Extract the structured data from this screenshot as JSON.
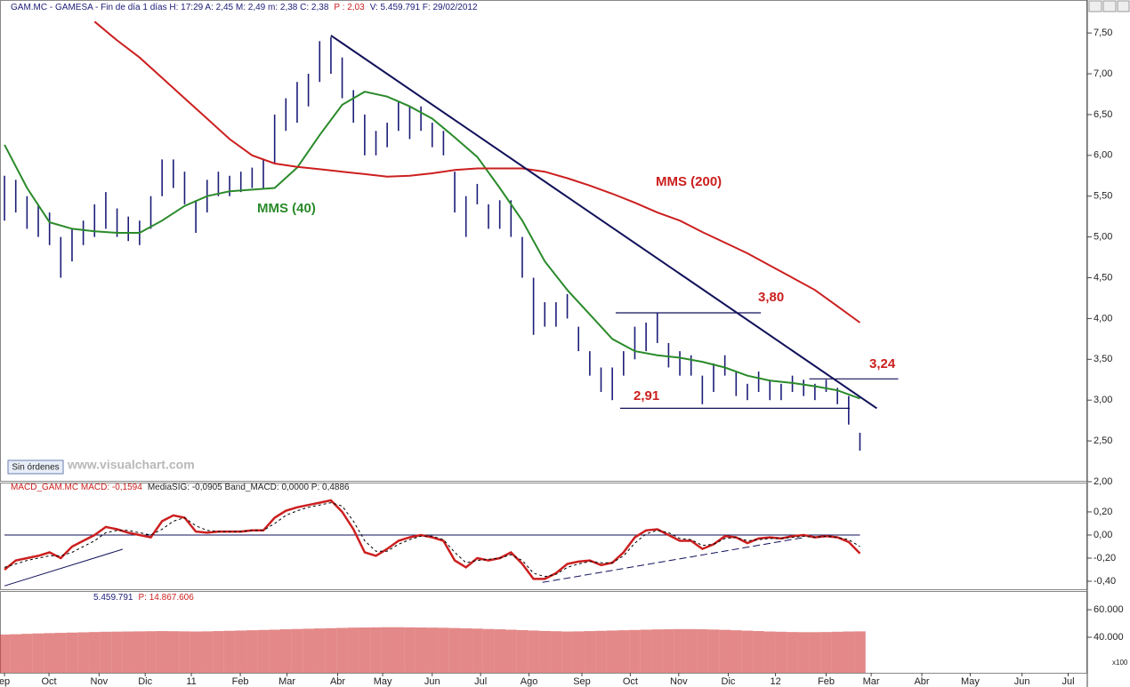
{
  "chart_data": [
    {
      "type": "ohlc",
      "title": "GAM.MC - GAMESA - Fin de día 1 días  H: 17:29  A: 2,45  M: 2,49  m: 2,38  C: 2,38",
      "title_highlight": "P : 2,03",
      "title_tail": "V: 5.459.791  F: 29/02/2012",
      "xlim": [
        -0.4,
        96.2
      ],
      "ylim": [
        2.0,
        7.73
      ],
      "yticks": [
        {
          "value": 2.0,
          "label": "2,00"
        },
        {
          "value": 2.5,
          "label": "2,50"
        },
        {
          "value": 3.0,
          "label": "3,00"
        },
        {
          "value": 3.5,
          "label": "3,50"
        },
        {
          "value": 4.0,
          "label": "4,00"
        },
        {
          "value": 4.5,
          "label": "4,50"
        },
        {
          "value": 5.0,
          "label": "5,00"
        },
        {
          "value": 5.5,
          "label": "5,50"
        },
        {
          "value": 6.0,
          "label": "6,00"
        },
        {
          "value": 6.5,
          "label": "6,50"
        },
        {
          "value": 7.0,
          "label": "7,00"
        },
        {
          "value": 7.5,
          "label": "7,50"
        }
      ],
      "bars": {
        "color": "#1c1c78",
        "x": [
          0,
          1,
          2,
          3,
          4,
          5,
          6,
          7,
          8,
          9,
          10,
          11,
          12,
          13,
          14,
          15,
          16,
          17,
          18,
          19,
          20,
          21,
          22,
          23,
          24,
          25,
          26,
          27,
          28,
          29,
          30,
          31,
          32,
          33,
          34,
          35,
          36,
          37,
          38,
          39,
          40,
          41,
          42,
          43,
          44,
          45,
          46,
          47,
          48,
          49,
          50,
          51,
          52,
          53,
          54,
          55,
          56,
          57,
          58,
          59,
          60,
          61,
          62,
          63,
          64,
          65,
          66,
          67,
          68,
          69,
          70,
          71,
          72,
          73,
          74,
          75,
          76
        ],
        "high": [
          5.75,
          5.7,
          5.5,
          5.4,
          5.3,
          5.0,
          5.1,
          5.2,
          5.4,
          5.55,
          5.35,
          5.25,
          5.2,
          5.5,
          5.95,
          5.95,
          5.8,
          5.45,
          5.7,
          5.8,
          5.75,
          5.8,
          5.85,
          5.95,
          6.5,
          6.7,
          6.9,
          7.0,
          7.4,
          7.45,
          7.2,
          6.8,
          6.5,
          6.3,
          6.4,
          6.65,
          6.6,
          6.6,
          6.4,
          6.3,
          5.8,
          5.5,
          5.65,
          5.4,
          5.45,
          5.45,
          5.0,
          4.5,
          4.2,
          4.2,
          4.3,
          3.9,
          3.6,
          3.4,
          3.4,
          3.6,
          3.9,
          3.95,
          4.07,
          3.7,
          3.6,
          3.55,
          3.3,
          3.45,
          3.55,
          3.35,
          3.2,
          3.35,
          3.25,
          3.2,
          3.3,
          3.25,
          3.2,
          3.25,
          3.15,
          3.05,
          2.6
        ],
        "low": [
          5.2,
          5.3,
          5.1,
          5.0,
          4.9,
          4.5,
          4.7,
          4.9,
          5.0,
          5.1,
          5.0,
          4.95,
          4.9,
          5.1,
          5.5,
          5.6,
          5.4,
          5.05,
          5.3,
          5.5,
          5.5,
          5.55,
          5.6,
          5.6,
          5.9,
          6.3,
          6.4,
          6.6,
          6.9,
          7.0,
          6.7,
          6.4,
          6.0,
          6.0,
          6.1,
          6.3,
          6.2,
          6.3,
          6.1,
          6.0,
          5.3,
          5.0,
          5.4,
          5.1,
          5.1,
          5.0,
          4.5,
          3.8,
          3.9,
          3.9,
          4.0,
          3.6,
          3.3,
          3.1,
          3.0,
          3.3,
          3.5,
          3.6,
          3.7,
          3.4,
          3.3,
          3.3,
          2.95,
          3.1,
          3.3,
          3.05,
          3.0,
          3.1,
          3.0,
          3.0,
          3.1,
          3.05,
          3.0,
          3.1,
          2.95,
          2.7,
          2.38
        ]
      },
      "series": [
        {
          "name": "MMS (40)",
          "color": "#2a8a2a",
          "x": [
            0,
            2,
            4,
            6,
            8,
            10,
            12,
            14,
            16,
            18,
            20,
            22,
            24,
            26,
            28,
            30,
            32,
            34,
            36,
            38,
            40,
            42,
            44,
            46,
            48,
            50,
            52,
            54,
            56,
            58,
            60,
            62,
            64,
            66,
            68,
            70,
            72,
            74,
            76
          ],
          "values": [
            6.13,
            5.6,
            5.18,
            5.1,
            5.07,
            5.05,
            5.05,
            5.2,
            5.38,
            5.5,
            5.56,
            5.58,
            5.6,
            5.85,
            6.25,
            6.62,
            6.78,
            6.72,
            6.6,
            6.45,
            6.22,
            5.98,
            5.6,
            5.2,
            4.7,
            4.35,
            4.05,
            3.75,
            3.6,
            3.55,
            3.52,
            3.47,
            3.4,
            3.3,
            3.24,
            3.21,
            3.17,
            3.12,
            3.02
          ]
        },
        {
          "name": "MMS (200)",
          "color": "#cc1f1f",
          "x": [
            8,
            10,
            12,
            14,
            16,
            18,
            20,
            22,
            24,
            26,
            28,
            30,
            32,
            34,
            36,
            38,
            40,
            42,
            44,
            46,
            48,
            50,
            52,
            54,
            56,
            58,
            60,
            62,
            64,
            66,
            68,
            70,
            72,
            74,
            76
          ],
          "values": [
            7.64,
            7.41,
            7.2,
            6.95,
            6.7,
            6.45,
            6.2,
            6.0,
            5.9,
            5.86,
            5.83,
            5.8,
            5.77,
            5.74,
            5.75,
            5.78,
            5.82,
            5.84,
            5.84,
            5.84,
            5.8,
            5.72,
            5.63,
            5.53,
            5.42,
            5.3,
            5.2,
            5.06,
            4.93,
            4.8,
            4.65,
            4.5,
            4.35,
            4.15,
            3.95
          ]
        }
      ],
      "trendlines": [
        {
          "color": "#10105a",
          "x": [
            29,
            77.5
          ],
          "y": [
            7.47,
            2.9
          ]
        }
      ],
      "annotations": [
        {
          "label": "3,80",
          "y": 4.07,
          "x": [
            54.3,
            67.2
          ]
        },
        {
          "label": "2,91",
          "y": 2.9,
          "x": [
            54.7,
            75.1
          ]
        },
        {
          "label": "3,24",
          "y": 3.26,
          "x": [
            71.5,
            79.4
          ]
        }
      ],
      "annotation_color": "#10105a",
      "watermark": "www.visualchart.com",
      "button": "Sin órdenes"
    },
    {
      "type": "line",
      "title": "MACD_GAM.MC  MACD: -0,1594",
      "title_tail": "MediaSIG: -0,0905  Band_MACD: 0,0000  P: 0,4886",
      "xlim": [
        -0.4,
        96.2
      ],
      "ylim": [
        -0.469,
        0.438
      ],
      "yticks": [
        {
          "value": -0.4,
          "label": "-0,40"
        },
        {
          "value": -0.2,
          "label": "-0,20"
        },
        {
          "value": 0,
          "label": "0,00"
        },
        {
          "value": 0.2,
          "label": "0,20"
        }
      ],
      "reference_line": 0,
      "reference_color": "#10105a",
      "series": [
        {
          "name": "MACD",
          "color": "#cc1f1f",
          "width": 2.5,
          "x": [
            0,
            1,
            2,
            3,
            4,
            5,
            6,
            7,
            8,
            9,
            10,
            11,
            12,
            13,
            14,
            15,
            16,
            17,
            18,
            19,
            20,
            21,
            22,
            23,
            24,
            25,
            26,
            27,
            28,
            29,
            30,
            31,
            32,
            33,
            34,
            35,
            36,
            37,
            38,
            39,
            40,
            41,
            42,
            43,
            44,
            45,
            46,
            47,
            48,
            49,
            50,
            51,
            52,
            53,
            54,
            55,
            56,
            57,
            58,
            59,
            60,
            61,
            62,
            63,
            64,
            65,
            66,
            67,
            68,
            69,
            70,
            71,
            72,
            73,
            74,
            75,
            76
          ],
          "values": [
            -0.3,
            -0.22,
            -0.2,
            -0.18,
            -0.15,
            -0.2,
            -0.1,
            -0.05,
            0.0,
            0.07,
            0.05,
            0.02,
            0.0,
            -0.02,
            0.12,
            0.17,
            0.15,
            0.03,
            0.02,
            0.03,
            0.03,
            0.03,
            0.04,
            0.04,
            0.15,
            0.21,
            0.24,
            0.26,
            0.28,
            0.3,
            0.2,
            0.05,
            -0.15,
            -0.18,
            -0.12,
            -0.05,
            -0.02,
            0.0,
            -0.02,
            -0.05,
            -0.22,
            -0.28,
            -0.2,
            -0.22,
            -0.2,
            -0.15,
            -0.25,
            -0.38,
            -0.38,
            -0.33,
            -0.25,
            -0.23,
            -0.22,
            -0.26,
            -0.24,
            -0.15,
            -0.02,
            0.04,
            0.05,
            0.0,
            -0.05,
            -0.05,
            -0.12,
            -0.08,
            -0.01,
            -0.02,
            -0.07,
            -0.03,
            -0.02,
            -0.03,
            -0.01,
            0.0,
            -0.02,
            -0.01,
            -0.02,
            -0.06,
            -0.16
          ]
        },
        {
          "name": "MediaSIG",
          "color": "#000000",
          "width": 1,
          "dashed": true,
          "x": [
            0,
            1,
            2,
            3,
            4,
            5,
            6,
            7,
            8,
            9,
            10,
            11,
            12,
            13,
            14,
            15,
            16,
            17,
            18,
            19,
            20,
            21,
            22,
            23,
            24,
            25,
            26,
            27,
            28,
            29,
            30,
            31,
            32,
            33,
            34,
            35,
            36,
            37,
            38,
            39,
            40,
            41,
            42,
            43,
            44,
            45,
            46,
            47,
            48,
            49,
            50,
            51,
            52,
            53,
            54,
            55,
            56,
            57,
            58,
            59,
            60,
            61,
            62,
            63,
            64,
            65,
            66,
            67,
            68,
            69,
            70,
            71,
            72,
            73,
            74,
            75,
            76
          ],
          "values": [
            -0.28,
            -0.25,
            -0.22,
            -0.2,
            -0.18,
            -0.18,
            -0.15,
            -0.1,
            -0.05,
            0.02,
            0.04,
            0.04,
            0.02,
            0.0,
            0.05,
            0.12,
            0.15,
            0.08,
            0.04,
            0.03,
            0.03,
            0.03,
            0.04,
            0.04,
            0.1,
            0.17,
            0.21,
            0.24,
            0.26,
            0.28,
            0.25,
            0.12,
            -0.05,
            -0.14,
            -0.14,
            -0.08,
            -0.04,
            -0.01,
            -0.01,
            -0.04,
            -0.15,
            -0.24,
            -0.22,
            -0.21,
            -0.2,
            -0.17,
            -0.22,
            -0.33,
            -0.36,
            -0.34,
            -0.28,
            -0.25,
            -0.23,
            -0.24,
            -0.24,
            -0.18,
            -0.07,
            0.01,
            0.04,
            0.02,
            -0.03,
            -0.04,
            -0.09,
            -0.08,
            -0.03,
            -0.02,
            -0.05,
            -0.04,
            -0.03,
            -0.03,
            -0.02,
            -0.01,
            -0.02,
            -0.01,
            -0.02,
            -0.04,
            -0.1
          ]
        }
      ],
      "trendlines": [
        {
          "color": "#10105a",
          "x": [
            0,
            10.5
          ],
          "y": [
            -0.44,
            -0.123
          ]
        },
        {
          "color": "#10105a",
          "dashed": true,
          "x": [
            47.8,
            71.1
          ],
          "y": [
            -0.41,
            -0.02
          ]
        }
      ]
    },
    {
      "type": "bar",
      "title": "5.459.791",
      "title_highlight": "P: 14.867.606",
      "unit": "x100",
      "color": "#d23a3a",
      "xlim": [
        -0.4,
        96.2
      ],
      "ylim": [
        14200,
        72300
      ],
      "yticks": [
        {
          "value": 40000,
          "label": "40.000"
        },
        {
          "value": 60000,
          "label": "60.000"
        }
      ],
      "x": [
        0,
        1,
        2,
        3,
        4,
        5,
        6,
        7,
        8,
        9,
        10,
        11,
        12,
        13,
        14,
        15,
        16,
        17,
        18,
        19,
        20,
        21,
        22,
        23,
        24,
        25,
        26,
        27,
        28,
        29,
        30,
        31,
        32,
        33,
        34,
        35,
        36,
        37,
        38,
        39,
        40,
        41,
        42,
        43,
        44,
        45,
        46,
        47,
        48,
        49,
        50,
        51,
        52,
        53,
        54,
        55,
        56,
        57,
        58,
        59,
        60,
        61,
        62,
        63,
        64,
        65,
        66,
        67,
        68,
        69,
        70,
        71,
        72,
        73,
        74,
        75,
        76
      ],
      "values": [
        42000,
        42200,
        42500,
        42800,
        43000,
        43200,
        43400,
        43600,
        43800,
        44000,
        44100,
        44200,
        44300,
        44400,
        44500,
        44400,
        44300,
        44200,
        44300,
        44500,
        44700,
        44900,
        45100,
        45300,
        45500,
        45800,
        46000,
        46200,
        46400,
        46600,
        46800,
        47000,
        47100,
        47200,
        47300,
        47300,
        47200,
        47100,
        47000,
        46900,
        46700,
        46500,
        46300,
        46000,
        45800,
        45500,
        45200,
        44900,
        44600,
        44400,
        44200,
        44300,
        44500,
        44700,
        44900,
        45100,
        45300,
        45500,
        45700,
        45800,
        45900,
        45900,
        45800,
        45600,
        45400,
        45100,
        44800,
        44500,
        44200,
        44000,
        43800,
        43700,
        43700,
        43800,
        44000,
        44200,
        44300
      ],
      "xticks": [
        {
          "value": 0,
          "label": "ep"
        },
        {
          "value": 3.95,
          "label": "Oct"
        },
        {
          "value": 8.4,
          "label": "Nov"
        },
        {
          "value": 12.5,
          "label": "Dic"
        },
        {
          "value": 16.6,
          "label": "11"
        },
        {
          "value": 20.95,
          "label": "Feb"
        },
        {
          "value": 25.1,
          "label": "Mar"
        },
        {
          "value": 29.6,
          "label": "Abr"
        },
        {
          "value": 33.6,
          "label": "May"
        },
        {
          "value": 38.0,
          "label": "Jun"
        },
        {
          "value": 42.3,
          "label": "Jul"
        },
        {
          "value": 46.6,
          "label": "Ago"
        },
        {
          "value": 51.3,
          "label": "Sep"
        },
        {
          "value": 55.6,
          "label": "Oct"
        },
        {
          "value": 59.9,
          "label": "Nov"
        },
        {
          "value": 64.3,
          "label": "Dic"
        },
        {
          "value": 68.5,
          "label": "12"
        },
        {
          "value": 73.0,
          "label": "Feb"
        },
        {
          "value": 77.0,
          "label": "Mar"
        },
        {
          "value": 81.5,
          "label": "Abr"
        },
        {
          "value": 85.8,
          "label": "May"
        },
        {
          "value": 90.4,
          "label": "Jun"
        },
        {
          "value": 94.5,
          "label": "Jul"
        }
      ]
    }
  ]
}
